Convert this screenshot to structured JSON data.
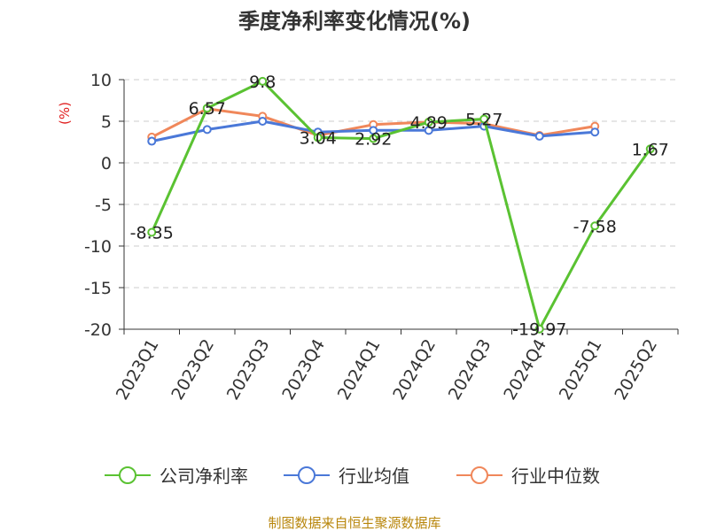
{
  "chart_data": {
    "type": "line",
    "title": "季度净利率变化情况(%)",
    "ylabel": "(%)",
    "xlabel": "",
    "categories": [
      "2023Q1",
      "2023Q2",
      "2023Q3",
      "2023Q4",
      "2024Q1",
      "2024Q2",
      "2024Q3",
      "2024Q4",
      "2025Q1",
      "2025Q2"
    ],
    "ylim": [
      -20,
      10
    ],
    "yticks": [
      10,
      5,
      0,
      -5,
      -10,
      -15,
      -20
    ],
    "grid": true,
    "legend_position": "bottom",
    "series": [
      {
        "name": "公司净利率",
        "color": "#5ac232",
        "values": [
          -8.35,
          6.57,
          9.8,
          3.04,
          2.92,
          4.89,
          5.27,
          -19.97,
          -7.58,
          1.67
        ],
        "labels": [
          "-8.35",
          "6.57",
          "9.8",
          "3.04",
          "2.92",
          "4.89",
          "5.27",
          "-19.97",
          "-7.58",
          "1.67"
        ]
      },
      {
        "name": "行业均值",
        "color": "#4a78d8",
        "values": [
          2.6,
          4.0,
          5.0,
          3.7,
          3.9,
          3.9,
          4.4,
          3.2,
          3.7,
          null
        ]
      },
      {
        "name": "行业中位数",
        "color": "#f0875a",
        "values": [
          3.1,
          6.5,
          5.6,
          3.3,
          4.6,
          4.9,
          4.7,
          3.3,
          4.4,
          null
        ]
      }
    ]
  },
  "source": "制图数据来自恒生聚源数据库"
}
